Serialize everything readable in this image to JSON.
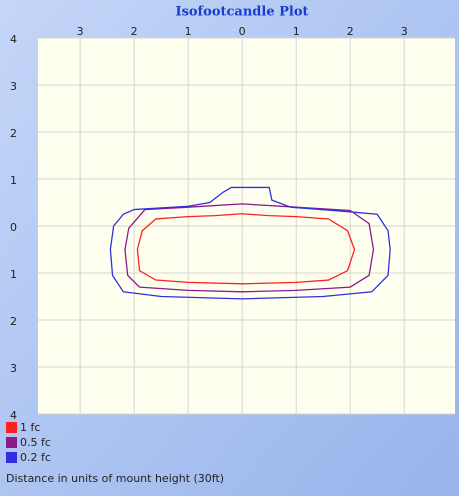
{
  "chart_data": {
    "type": "contour",
    "title": "Isofootcandle Plot",
    "note": "Distance in units of mount height (30ft)",
    "xlim": [
      -3.78,
      3.94
    ],
    "ylim": [
      -4,
      4
    ],
    "xticks": [
      {
        "value": -3,
        "label": "3"
      },
      {
        "value": -2,
        "label": "2"
      },
      {
        "value": -1,
        "label": "1"
      },
      0,
      1,
      2,
      3
    ],
    "yticks": [
      4,
      3,
      2,
      1,
      0,
      {
        "value": -1,
        "label": "1"
      },
      {
        "value": -2,
        "label": "2"
      },
      {
        "value": -3,
        "label": "3"
      },
      {
        "value": -4,
        "label": "4"
      }
    ],
    "grid": true,
    "series": [
      {
        "name": "1 fc",
        "color": "#ff2020",
        "x": [
          -1.6,
          -1,
          -0.5,
          0,
          0.5,
          1,
          1.6,
          1.95,
          2.08,
          1.95,
          1.6,
          1,
          0,
          -1,
          -1.6,
          -1.9,
          -1.94,
          -1.85
        ],
        "values": [
          0.15,
          0.2,
          0.22,
          0.26,
          0.22,
          0.2,
          0.15,
          -0.1,
          -0.5,
          -0.95,
          -1.15,
          -1.2,
          -1.23,
          -1.2,
          -1.15,
          -0.95,
          -0.5,
          -0.1
        ]
      },
      {
        "name": "0.5 fc",
        "color": "#8b1a8b",
        "x": [
          -1.8,
          -1,
          0,
          1,
          2,
          2.35,
          2.43,
          2.35,
          2,
          1,
          0,
          -1,
          -1.9,
          -2.12,
          -2.17,
          -2.1
        ],
        "values": [
          0.35,
          0.4,
          0.47,
          0.4,
          0.33,
          0.05,
          -0.5,
          -1.05,
          -1.3,
          -1.37,
          -1.4,
          -1.37,
          -1.3,
          -1.05,
          -0.5,
          -0.05
        ]
      },
      {
        "name": "0.2 fc",
        "color": "#3030e0",
        "x": [
          -2,
          -1,
          -0.6,
          -0.35,
          -0.2,
          0.5,
          0.55,
          0.9,
          1.8,
          2.5,
          2.7,
          2.74,
          2.7,
          2.4,
          1.5,
          0,
          -1.5,
          -2.2,
          -2.4,
          -2.44,
          -2.38,
          -2.2
        ],
        "values": [
          0.35,
          0.42,
          0.5,
          0.72,
          0.82,
          0.82,
          0.55,
          0.4,
          0.32,
          0.25,
          -0.1,
          -0.5,
          -1.05,
          -1.4,
          -1.5,
          -1.55,
          -1.5,
          -1.4,
          -1.05,
          -0.5,
          0,
          0.25
        ]
      }
    ]
  }
}
